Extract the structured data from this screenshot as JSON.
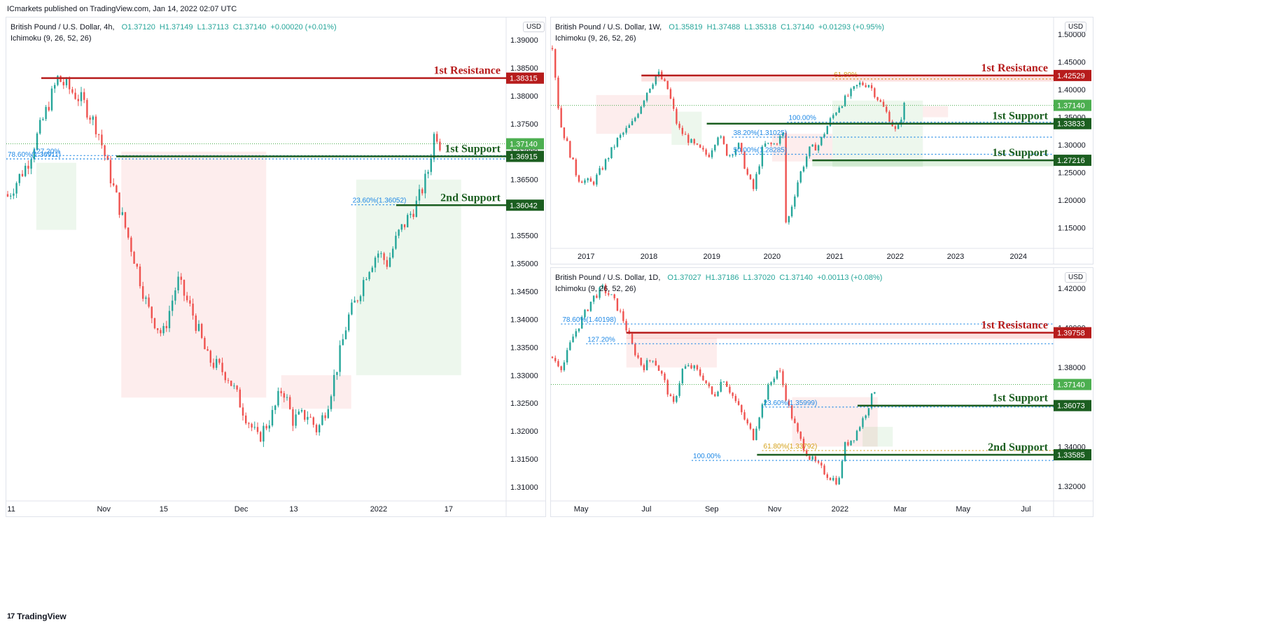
{
  "header": {
    "publisher": "ICmarkets published on TradingView.com, Jan 14, 2022 02:07 UTC"
  },
  "footer": {
    "brand": "TradingView",
    "logo": "17"
  },
  "colors": {
    "up": "#26a69a",
    "down": "#ef5350",
    "resistance": "#b71c1c",
    "support": "#1b5e20",
    "fib": "#1e88e5",
    "last": "#4caf50",
    "axis": "#131722"
  },
  "charts": [
    {
      "id": "h4",
      "title": "British Pound / U.S. Dollar, 4h,",
      "indicator": "Ichimoku (9, 26, 52, 26)",
      "ohlc": {
        "o": "O1.37120",
        "h": "H1.37149",
        "l": "L1.37113",
        "c": "C1.37140",
        "chg": "+0.00020 (+0.01%)"
      },
      "currency": "USD",
      "chart_data": {
        "type": "candlestick",
        "ylim": [
          1.3075,
          1.393
        ],
        "y_ticks": [
          "1.39000",
          "1.38500",
          "1.38000",
          "1.37500",
          "1.37000",
          "1.36500",
          "1.36000",
          "1.35500",
          "1.35000",
          "1.34500",
          "1.34000",
          "1.33500",
          "1.33000",
          "1.32500",
          "1.32000",
          "1.31500",
          "1.31000"
        ],
        "x_ticks": [
          "11",
          "Nov",
          "15",
          "Dec",
          "13",
          "2022",
          "17"
        ],
        "x_tick_pos": [
          0.01,
          0.195,
          0.315,
          0.47,
          0.575,
          0.745,
          0.885
        ],
        "path": [
          [
            0.0,
            1.362
          ],
          [
            0.04,
            1.368
          ],
          [
            0.1,
            1.3831
          ],
          [
            0.15,
            1.379
          ],
          [
            0.18,
            1.374
          ],
          [
            0.21,
            1.364
          ],
          [
            0.25,
            1.352
          ],
          [
            0.28,
            1.342
          ],
          [
            0.31,
            1.337
          ],
          [
            0.34,
            1.347
          ],
          [
            0.37,
            1.341
          ],
          [
            0.4,
            1.333
          ],
          [
            0.44,
            1.33
          ],
          [
            0.47,
            1.324
          ],
          [
            0.5,
            1.3185
          ],
          [
            0.53,
            1.323
          ],
          [
            0.55,
            1.328
          ],
          [
            0.57,
            1.322
          ],
          [
            0.6,
            1.323
          ],
          [
            0.62,
            1.32
          ],
          [
            0.64,
            1.325
          ],
          [
            0.66,
            1.332
          ],
          [
            0.68,
            1.34
          ],
          [
            0.7,
            1.344
          ],
          [
            0.72,
            1.349
          ],
          [
            0.74,
            1.352
          ],
          [
            0.76,
            1.35
          ],
          [
            0.78,
            1.355
          ],
          [
            0.8,
            1.358
          ],
          [
            0.82,
            1.361
          ],
          [
            0.84,
            1.366
          ],
          [
            0.855,
            1.374
          ],
          [
            0.865,
            1.3714
          ]
        ],
        "last_price": 1.3714,
        "last_label": "1.37140",
        "levels": [
          {
            "name": "1st Resistance",
            "price": 1.38315,
            "label": "1.38315",
            "kind": "resistance",
            "x0": 0.07
          },
          {
            "name": "1st Support",
            "price": 1.36915,
            "label": "1.36915",
            "kind": "support",
            "x0": 0.22
          },
          {
            "name": "2nd Support",
            "price": 1.36042,
            "label": "1.36042",
            "kind": "support",
            "x0": 0.78
          }
        ],
        "fibs": [
          {
            "text": "78.60%(1.36911)",
            "price": 1.3687,
            "x0": 0.0
          },
          {
            "text": "127.20%",
            "price": 1.3693,
            "x0": 0.05
          },
          {
            "text": "23.60%(1.36052)",
            "price": 1.3605,
            "x0": 0.69
          }
        ],
        "cloud": [
          {
            "color": "#4caf50",
            "opacity": 0.1,
            "x0": 0.06,
            "x1": 0.14,
            "top": 1.368,
            "bottom": 1.356
          },
          {
            "color": "#ef5350",
            "opacity": 0.1,
            "x0": 0.23,
            "x1": 0.52,
            "top": 1.37,
            "bottom": 1.326
          },
          {
            "color": "#ef5350",
            "opacity": 0.1,
            "x0": 0.55,
            "x1": 0.69,
            "top": 1.33,
            "bottom": 1.324
          },
          {
            "color": "#4caf50",
            "opacity": 0.1,
            "x0": 0.7,
            "x1": 0.91,
            "top": 1.365,
            "bottom": 1.33
          }
        ]
      }
    },
    {
      "id": "w1",
      "title": "British Pound / U.S. Dollar, 1W,",
      "indicator": "Ichimoku (9, 26, 52, 26)",
      "ohlc": {
        "o": "O1.35819",
        "h": "H1.37488",
        "l": "L1.35318",
        "c": "C1.37140",
        "chg": "+0.01293 (+0.95%)"
      },
      "currency": "USD",
      "chart_data": {
        "type": "candlestick",
        "ylim": [
          1.113,
          1.52
        ],
        "y_ticks": [
          "1.50000",
          "1.45000",
          "1.40000",
          "1.35000",
          "1.30000",
          "1.25000",
          "1.20000",
          "1.15000"
        ],
        "x_ticks": [
          "2017",
          "2018",
          "2019",
          "2020",
          "2021",
          "2022",
          "2023",
          "2024"
        ],
        "x_tick_pos": [
          0.07,
          0.195,
          0.32,
          0.44,
          0.565,
          0.685,
          0.805,
          0.93
        ],
        "path": [
          [
            0.0,
            1.48
          ],
          [
            0.015,
            1.34
          ],
          [
            0.03,
            1.3
          ],
          [
            0.05,
            1.24
          ],
          [
            0.08,
            1.23
          ],
          [
            0.1,
            1.26
          ],
          [
            0.13,
            1.31
          ],
          [
            0.16,
            1.34
          ],
          [
            0.19,
            1.4
          ],
          [
            0.21,
            1.43
          ],
          [
            0.23,
            1.4
          ],
          [
            0.25,
            1.33
          ],
          [
            0.28,
            1.3
          ],
          [
            0.31,
            1.28
          ],
          [
            0.33,
            1.32
          ],
          [
            0.35,
            1.28
          ],
          [
            0.37,
            1.3
          ],
          [
            0.39,
            1.24
          ],
          [
            0.4,
            1.22
          ],
          [
            0.42,
            1.3
          ],
          [
            0.44,
            1.3
          ],
          [
            0.46,
            1.32
          ],
          [
            0.465,
            1.15
          ],
          [
            0.49,
            1.24
          ],
          [
            0.51,
            1.29
          ],
          [
            0.53,
            1.3
          ],
          [
            0.55,
            1.34
          ],
          [
            0.57,
            1.37
          ],
          [
            0.59,
            1.39
          ],
          [
            0.61,
            1.41
          ],
          [
            0.63,
            1.41
          ],
          [
            0.65,
            1.38
          ],
          [
            0.67,
            1.35
          ],
          [
            0.685,
            1.32
          ],
          [
            0.7,
            1.3714
          ]
        ],
        "last_price": 1.3714,
        "last_label": "1.37140",
        "levels": [
          {
            "name": "1st Resistance",
            "price": 1.42529,
            "label": "1.42529",
            "kind": "resistance",
            "x0": 0.18,
            "band": 0.008
          },
          {
            "name": "1st Support",
            "price": 1.33833,
            "label": "1.33833",
            "kind": "support",
            "x0": 0.31
          },
          {
            "name": "1st Support",
            "price": 1.27216,
            "label": "1.27216",
            "kind": "support",
            "x0": 0.52,
            "band": 0.008
          }
        ],
        "fibs": [
          {
            "text": "61.80%",
            "price": 1.419,
            "x0": 0.56,
            "color": "#d4a017"
          },
          {
            "text": "100.00%",
            "price": 1.341,
            "x0": 0.47
          },
          {
            "text": "38.20%(1.31025)",
            "price": 1.314,
            "x0": 0.36
          },
          {
            "text": "50.00%(1.28285)",
            "price": 1.283,
            "x0": 0.36
          }
        ],
        "cloud": [
          {
            "color": "#ef5350",
            "opacity": 0.1,
            "x0": 0.09,
            "x1": 0.24,
            "top": 1.39,
            "bottom": 1.32
          },
          {
            "color": "#4caf50",
            "opacity": 0.1,
            "x0": 0.24,
            "x1": 0.3,
            "top": 1.36,
            "bottom": 1.3
          },
          {
            "color": "#ef5350",
            "opacity": 0.1,
            "x0": 0.44,
            "x1": 0.56,
            "top": 1.32,
            "bottom": 1.27
          },
          {
            "color": "#4caf50",
            "opacity": 0.1,
            "x0": 0.56,
            "x1": 0.74,
            "top": 1.38,
            "bottom": 1.26
          },
          {
            "color": "#ef5350",
            "opacity": 0.1,
            "x0": 0.74,
            "x1": 0.79,
            "top": 1.37,
            "bottom": 1.35
          }
        ]
      }
    },
    {
      "id": "d1",
      "title": "British Pound / U.S. Dollar, 1D,",
      "indicator": "Ichimoku (9, 26, 52, 26)",
      "ohlc": {
        "o": "O1.37027",
        "h": "H1.37186",
        "l": "L1.37020",
        "c": "C1.37140",
        "chg": "+0.00113 (+0.08%)"
      },
      "currency": "USD",
      "chart_data": {
        "type": "candlestick",
        "ylim": [
          1.3125,
          1.4275
        ],
        "y_ticks": [
          "1.42000",
          "1.40000",
          "1.38000",
          "1.36000",
          "1.34000",
          "1.32000"
        ],
        "x_ticks": [
          "May",
          "Jul",
          "Sep",
          "Nov",
          "2022",
          "Mar",
          "May",
          "Jul"
        ],
        "x_tick_pos": [
          0.06,
          0.19,
          0.32,
          0.445,
          0.575,
          0.695,
          0.82,
          0.945
        ],
        "path": [
          [
            0.0,
            1.385
          ],
          [
            0.02,
            1.38
          ],
          [
            0.04,
            1.395
          ],
          [
            0.06,
            1.405
          ],
          [
            0.08,
            1.415
          ],
          [
            0.1,
            1.42
          ],
          [
            0.12,
            1.415
          ],
          [
            0.14,
            1.405
          ],
          [
            0.16,
            1.39
          ],
          [
            0.18,
            1.38
          ],
          [
            0.2,
            1.385
          ],
          [
            0.22,
            1.375
          ],
          [
            0.24,
            1.36
          ],
          [
            0.26,
            1.38
          ],
          [
            0.28,
            1.38
          ],
          [
            0.3,
            1.375
          ],
          [
            0.32,
            1.365
          ],
          [
            0.34,
            1.375
          ],
          [
            0.36,
            1.365
          ],
          [
            0.38,
            1.355
          ],
          [
            0.4,
            1.345
          ],
          [
            0.41,
            1.355
          ],
          [
            0.43,
            1.37
          ],
          [
            0.45,
            1.38
          ],
          [
            0.47,
            1.36
          ],
          [
            0.49,
            1.345
          ],
          [
            0.51,
            1.335
          ],
          [
            0.53,
            1.33
          ],
          [
            0.55,
            1.325
          ],
          [
            0.57,
            1.322
          ],
          [
            0.58,
            1.34
          ],
          [
            0.6,
            1.345
          ],
          [
            0.62,
            1.355
          ],
          [
            0.64,
            1.368
          ],
          [
            0.645,
            1.3714
          ]
        ],
        "last_price": 1.3714,
        "last_label": "1.37140",
        "levels": [
          {
            "name": "1st Resistance",
            "price": 1.39758,
            "label": "1.39758",
            "kind": "resistance",
            "x0": 0.15,
            "band": 0.008
          },
          {
            "name": "1st Support",
            "price": 1.36073,
            "label": "1.36073",
            "kind": "support",
            "x0": 0.61
          },
          {
            "name": "2nd Support",
            "price": 1.33585,
            "label": "1.33585",
            "kind": "support",
            "x0": 0.41
          }
        ],
        "fibs": [
          {
            "text": "78.60%(1.40198)",
            "price": 1.402,
            "x0": 0.02
          },
          {
            "text": "127.20%",
            "price": 1.392,
            "x0": 0.07
          },
          {
            "text": "23.60%(1.35999)",
            "price": 1.36,
            "x0": 0.42
          },
          {
            "text": "61.80%(1.33792)",
            "price": 1.338,
            "x0": 0.42,
            "color": "#d4a017"
          },
          {
            "text": "100.00%",
            "price": 1.333,
            "x0": 0.28
          }
        ],
        "cloud": [
          {
            "color": "#ef5350",
            "opacity": 0.1,
            "x0": 0.15,
            "x1": 0.33,
            "top": 1.395,
            "bottom": 1.38
          },
          {
            "color": "#ef5350",
            "opacity": 0.1,
            "x0": 0.48,
            "x1": 0.65,
            "top": 1.365,
            "bottom": 1.34
          },
          {
            "color": "#4caf50",
            "opacity": 0.1,
            "x0": 0.62,
            "x1": 0.68,
            "top": 1.35,
            "bottom": 1.34
          }
        ]
      }
    }
  ]
}
